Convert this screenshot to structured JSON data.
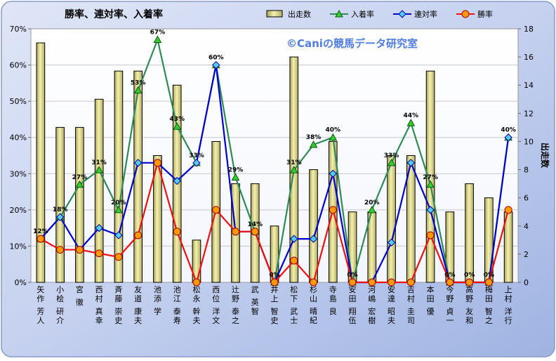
{
  "chart_data": {
    "type": "bar",
    "title": "勝率、連対率、入着率",
    "watermark": "©Caniの競馬データ研究室",
    "y2label": "出走数",
    "ylim": [
      0,
      70
    ],
    "y2lim": [
      0,
      18
    ],
    "yticks": [
      "0%",
      "10%",
      "20%",
      "30%",
      "40%",
      "50%",
      "60%",
      "70%"
    ],
    "y2ticks": [
      "0",
      "2",
      "4",
      "6",
      "8",
      "10",
      "12",
      "14",
      "16",
      "18"
    ],
    "grid": true,
    "legend_position": "top-right",
    "categories": [
      "矢作 芳人",
      "小桧 研介",
      "宮 徹",
      "西村 真幸",
      "斉藤 崇史",
      "友道 康夫",
      "池添 学",
      "池江 泰寿",
      "松永 幹夫",
      "西位 洋文",
      "辻野 泰之",
      "武 英智",
      "井上 智史",
      "松下 武士",
      "杉山 晴紀",
      "寺島 良",
      "安田 翔伍",
      "河嶋 宏樹",
      "安達 昭夫",
      "吉村 圭司",
      "本田 優",
      "今野 貞一",
      "高野 友和",
      "梅田 智之",
      "上村 洋行"
    ],
    "series": [
      {
        "name": "出走数",
        "axis": "right",
        "kind": "bar",
        "color": "#e8e49a",
        "values": [
          17,
          11,
          11,
          13,
          15,
          15,
          9,
          14,
          3,
          10,
          7,
          7,
          4,
          16,
          8,
          10,
          5,
          5,
          9,
          9,
          15,
          5,
          7,
          6,
          5
        ]
      },
      {
        "name": "入着率",
        "axis": "left",
        "kind": "line",
        "color": "#2e8b57",
        "values": [
          12,
          18,
          27,
          31,
          20,
          53,
          67,
          43,
          33,
          60,
          29,
          14,
          0,
          31,
          38,
          40,
          0,
          20,
          33,
          44,
          27,
          0,
          0,
          0,
          40
        ]
      },
      {
        "name": "連対率",
        "axis": "left",
        "kind": "line",
        "color": "#0000cc",
        "values": [
          12,
          18,
          9,
          15,
          13,
          33,
          33,
          28,
          33,
          60,
          14,
          14,
          0,
          12,
          12,
          30,
          0,
          0,
          11,
          33,
          20,
          0,
          0,
          0,
          40
        ]
      },
      {
        "name": "勝率",
        "axis": "left",
        "kind": "line",
        "color": "#ee1111",
        "values": [
          12,
          9,
          9,
          8,
          7,
          13,
          33,
          14,
          0,
          20,
          14,
          14,
          0,
          6,
          0,
          20,
          0,
          0,
          0,
          0,
          13,
          0,
          0,
          0,
          20
        ]
      }
    ],
    "data_labels": {
      "series": "入着率",
      "values": [
        "12%",
        "18%",
        "27%",
        "31%",
        "20%",
        "53%",
        "67%",
        "43%",
        "33%",
        "60%",
        "29%",
        "14%",
        "0%",
        "31%",
        "38%",
        "40%",
        "0%",
        "20%",
        "33%",
        "44%",
        "27%",
        "0%",
        "0%",
        "0%",
        "40%"
      ]
    }
  }
}
